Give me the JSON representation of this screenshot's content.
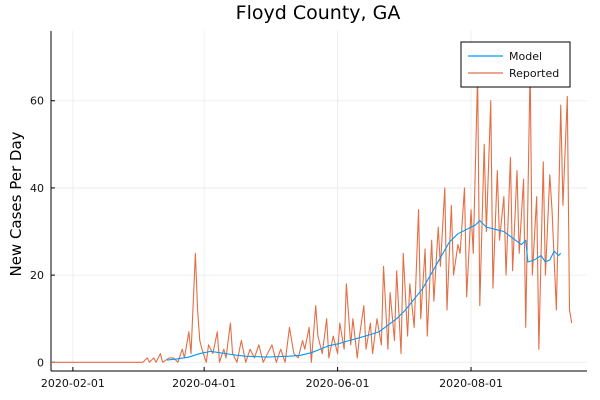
{
  "chart_data": {
    "type": "line",
    "title": "Floyd County, GA",
    "xlabel": "",
    "ylabel": "New Cases Per Day",
    "x_axis_type": "date",
    "xlim": [
      "2020-01-22",
      "2020-09-23"
    ],
    "ylim": [
      -2,
      76
    ],
    "x_ticks": [
      "2020-02-01",
      "2020-04-01",
      "2020-06-01",
      "2020-08-01"
    ],
    "y_ticks": [
      0,
      20,
      40,
      60
    ],
    "grid": true,
    "legend_position": "top-right",
    "series": [
      {
        "name": "Model",
        "color": "#009AFA",
        "points": [
          [
            "2020-03-15",
            0.5
          ],
          [
            "2020-03-20",
            0.8
          ],
          [
            "2020-03-25",
            1.2
          ],
          [
            "2020-03-30",
            2.0
          ],
          [
            "2020-04-04",
            2.5
          ],
          [
            "2020-04-08",
            2.2
          ],
          [
            "2020-04-12",
            1.9
          ],
          [
            "2020-04-16",
            1.6
          ],
          [
            "2020-04-20",
            1.4
          ],
          [
            "2020-04-25",
            1.3
          ],
          [
            "2020-04-30",
            1.2
          ],
          [
            "2020-05-05",
            1.3
          ],
          [
            "2020-05-10",
            1.4
          ],
          [
            "2020-05-15",
            1.6
          ],
          [
            "2020-05-20",
            2.2
          ],
          [
            "2020-05-24",
            3.0
          ],
          [
            "2020-05-28",
            3.8
          ],
          [
            "2020-06-01",
            4.2
          ],
          [
            "2020-06-05",
            4.8
          ],
          [
            "2020-06-10",
            5.5
          ],
          [
            "2020-06-15",
            6.2
          ],
          [
            "2020-06-20",
            7.0
          ],
          [
            "2020-06-24",
            8.5
          ],
          [
            "2020-06-28",
            10.0
          ],
          [
            "2020-07-02",
            12.0
          ],
          [
            "2020-07-06",
            14.5
          ],
          [
            "2020-07-10",
            17.0
          ],
          [
            "2020-07-14",
            20.5
          ],
          [
            "2020-07-18",
            24.0
          ],
          [
            "2020-07-22",
            27.5
          ],
          [
            "2020-07-26",
            29.5
          ],
          [
            "2020-07-30",
            30.5
          ],
          [
            "2020-08-03",
            31.5
          ],
          [
            "2020-08-05",
            32.5
          ],
          [
            "2020-08-08",
            31.0
          ],
          [
            "2020-08-12",
            30.5
          ],
          [
            "2020-08-16",
            30.0
          ],
          [
            "2020-08-20",
            28.5
          ],
          [
            "2020-08-24",
            27.0
          ],
          [
            "2020-08-26",
            28.0
          ],
          [
            "2020-08-27",
            23.0
          ],
          [
            "2020-08-30",
            23.5
          ],
          [
            "2020-09-02",
            24.5
          ],
          [
            "2020-09-04",
            23.0
          ],
          [
            "2020-09-06",
            23.5
          ],
          [
            "2020-09-08",
            25.5
          ],
          [
            "2020-09-10",
            24.5
          ],
          [
            "2020-09-11",
            25.0
          ]
        ]
      },
      {
        "name": "Reported",
        "color": "#E26F46",
        "points": [
          [
            "2020-01-22",
            0
          ],
          [
            "2020-03-04",
            0
          ],
          [
            "2020-03-06",
            1
          ],
          [
            "2020-03-07",
            0
          ],
          [
            "2020-03-09",
            1
          ],
          [
            "2020-03-10",
            0
          ],
          [
            "2020-03-12",
            2
          ],
          [
            "2020-03-13",
            0
          ],
          [
            "2020-03-16",
            1
          ],
          [
            "2020-03-18",
            1
          ],
          [
            "2020-03-20",
            0
          ],
          [
            "2020-03-22",
            3
          ],
          [
            "2020-03-23",
            1
          ],
          [
            "2020-03-25",
            7
          ],
          [
            "2020-03-26",
            2
          ],
          [
            "2020-03-28",
            25
          ],
          [
            "2020-03-29",
            12
          ],
          [
            "2020-03-30",
            5
          ],
          [
            "2020-03-31",
            3
          ],
          [
            "2020-04-02",
            0
          ],
          [
            "2020-04-03",
            4
          ],
          [
            "2020-04-05",
            2
          ],
          [
            "2020-04-07",
            7
          ],
          [
            "2020-04-08",
            0
          ],
          [
            "2020-04-10",
            3
          ],
          [
            "2020-04-11",
            1
          ],
          [
            "2020-04-13",
            9
          ],
          [
            "2020-04-14",
            2
          ],
          [
            "2020-04-16",
            0
          ],
          [
            "2020-04-18",
            5
          ],
          [
            "2020-04-20",
            0
          ],
          [
            "2020-04-22",
            3
          ],
          [
            "2020-04-24",
            1
          ],
          [
            "2020-04-26",
            4
          ],
          [
            "2020-04-28",
            0
          ],
          [
            "2020-04-30",
            2
          ],
          [
            "2020-05-02",
            4
          ],
          [
            "2020-05-04",
            0
          ],
          [
            "2020-05-06",
            3
          ],
          [
            "2020-05-08",
            0
          ],
          [
            "2020-05-10",
            8
          ],
          [
            "2020-05-12",
            2
          ],
          [
            "2020-05-14",
            1
          ],
          [
            "2020-05-16",
            5
          ],
          [
            "2020-05-17",
            3
          ],
          [
            "2020-05-19",
            8
          ],
          [
            "2020-05-20",
            0
          ],
          [
            "2020-05-22",
            13
          ],
          [
            "2020-05-23",
            6
          ],
          [
            "2020-05-25",
            2
          ],
          [
            "2020-05-27",
            10
          ],
          [
            "2020-05-28",
            1
          ],
          [
            "2020-05-30",
            6
          ],
          [
            "2020-06-01",
            2
          ],
          [
            "2020-06-02",
            9
          ],
          [
            "2020-06-04",
            3
          ],
          [
            "2020-06-05",
            18
          ],
          [
            "2020-06-07",
            4
          ],
          [
            "2020-06-08",
            10
          ],
          [
            "2020-06-10",
            1
          ],
          [
            "2020-06-11",
            6
          ],
          [
            "2020-06-13",
            13
          ],
          [
            "2020-06-14",
            3
          ],
          [
            "2020-06-16",
            9
          ],
          [
            "2020-06-17",
            2
          ],
          [
            "2020-06-19",
            10
          ],
          [
            "2020-06-21",
            4
          ],
          [
            "2020-06-22",
            22
          ],
          [
            "2020-06-24",
            3
          ],
          [
            "2020-06-25",
            16
          ],
          [
            "2020-06-27",
            5
          ],
          [
            "2020-06-28",
            21
          ],
          [
            "2020-06-30",
            2
          ],
          [
            "2020-07-01",
            25
          ],
          [
            "2020-07-03",
            6
          ],
          [
            "2020-07-04",
            18
          ],
          [
            "2020-07-06",
            8
          ],
          [
            "2020-07-08",
            35
          ],
          [
            "2020-07-09",
            10
          ],
          [
            "2020-07-11",
            26
          ],
          [
            "2020-07-12",
            6
          ],
          [
            "2020-07-14",
            28
          ],
          [
            "2020-07-15",
            14
          ],
          [
            "2020-07-17",
            31
          ],
          [
            "2020-07-18",
            22
          ],
          [
            "2020-07-20",
            40
          ],
          [
            "2020-07-21",
            12
          ],
          [
            "2020-07-23",
            36
          ],
          [
            "2020-07-24",
            20
          ],
          [
            "2020-07-26",
            27
          ],
          [
            "2020-07-27",
            25
          ],
          [
            "2020-07-29",
            40
          ],
          [
            "2020-07-30",
            15
          ],
          [
            "2020-08-01",
            35
          ],
          [
            "2020-08-02",
            25
          ],
          [
            "2020-08-04",
            66
          ],
          [
            "2020-08-05",
            13
          ],
          [
            "2020-08-07",
            50
          ],
          [
            "2020-08-08",
            30
          ],
          [
            "2020-08-10",
            60
          ],
          [
            "2020-08-11",
            17
          ],
          [
            "2020-08-13",
            44
          ],
          [
            "2020-08-14",
            28
          ],
          [
            "2020-08-16",
            38
          ],
          [
            "2020-08-17",
            20
          ],
          [
            "2020-08-19",
            47
          ],
          [
            "2020-08-20",
            21
          ],
          [
            "2020-08-22",
            44
          ],
          [
            "2020-08-23",
            25
          ],
          [
            "2020-08-25",
            42
          ],
          [
            "2020-08-26",
            8
          ],
          [
            "2020-08-28",
            68
          ],
          [
            "2020-08-29",
            20
          ],
          [
            "2020-08-31",
            38
          ],
          [
            "2020-09-01",
            3
          ],
          [
            "2020-09-03",
            46
          ],
          [
            "2020-09-04",
            20
          ],
          [
            "2020-09-06",
            43
          ],
          [
            "2020-09-07",
            35
          ],
          [
            "2020-09-09",
            12
          ],
          [
            "2020-09-11",
            59
          ],
          [
            "2020-09-12",
            36
          ],
          [
            "2020-09-14",
            61
          ],
          [
            "2020-09-15",
            12
          ],
          [
            "2020-09-16",
            9
          ]
        ]
      }
    ]
  }
}
